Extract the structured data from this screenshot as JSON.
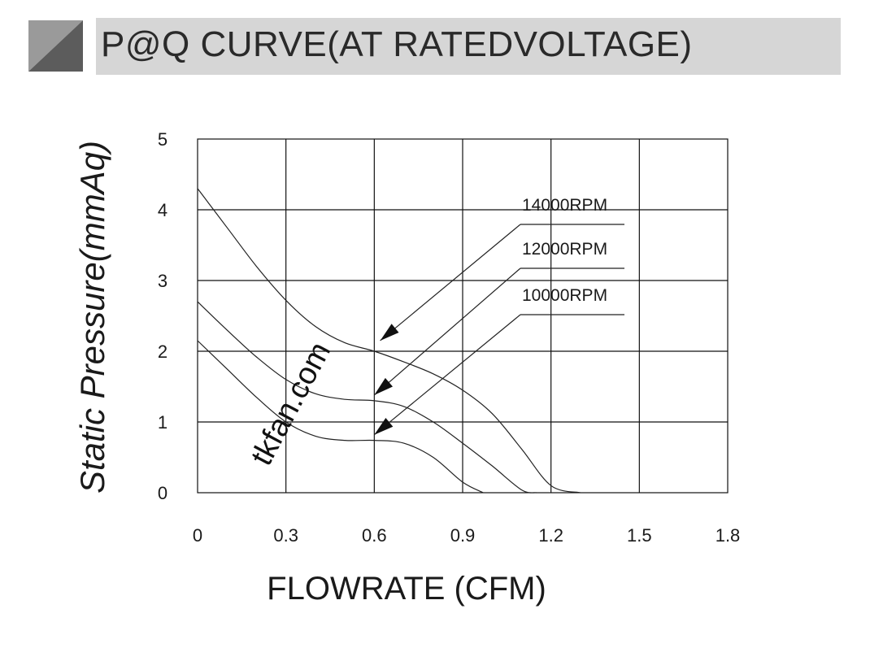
{
  "header": {
    "title": "P@Q CURVE(AT RATEDVOLTAGE)"
  },
  "watermark": "tkfan.com",
  "chart_data": {
    "type": "line",
    "xlabel": "FLOWRATE (CFM)",
    "ylabel": "Static  Pressure(mmAq)",
    "xlim": [
      0,
      1.8
    ],
    "ylim": [
      0,
      5
    ],
    "x_ticks": [
      "0",
      "0.3",
      "0.6",
      "0.9",
      "1.2",
      "1.5",
      "1.8"
    ],
    "y_ticks": [
      "0",
      "1",
      "2",
      "3",
      "4",
      "5"
    ],
    "grid": true,
    "series": [
      {
        "name": "14000RPM",
        "x": [
          0,
          0.1,
          0.2,
          0.3,
          0.4,
          0.5,
          0.6,
          0.7,
          0.8,
          0.9,
          1.0,
          1.1,
          1.2,
          1.3
        ],
        "y": [
          4.3,
          3.75,
          3.2,
          2.72,
          2.35,
          2.12,
          2.0,
          1.85,
          1.68,
          1.45,
          1.12,
          0.62,
          0.1,
          0.0
        ]
      },
      {
        "name": "12000RPM",
        "x": [
          0,
          0.1,
          0.2,
          0.3,
          0.4,
          0.5,
          0.6,
          0.7,
          0.8,
          0.9,
          1.0,
          1.1,
          1.15
        ],
        "y": [
          2.7,
          2.3,
          1.92,
          1.6,
          1.4,
          1.32,
          1.3,
          1.22,
          1.0,
          0.7,
          0.38,
          0.04,
          0.0
        ]
      },
      {
        "name": "10000RPM",
        "x": [
          0,
          0.1,
          0.2,
          0.3,
          0.4,
          0.5,
          0.6,
          0.7,
          0.8,
          0.9,
          0.97
        ],
        "y": [
          2.15,
          1.75,
          1.35,
          1.0,
          0.8,
          0.74,
          0.74,
          0.7,
          0.5,
          0.15,
          0.0
        ]
      }
    ],
    "annotations": [
      {
        "text": "14000RPM",
        "arrow_to": {
          "x": 0.62,
          "y": 2.15
        }
      },
      {
        "text": "12000RPM",
        "arrow_to": {
          "x": 0.6,
          "y": 1.38
        }
      },
      {
        "text": "10000RPM",
        "arrow_to": {
          "x": 0.6,
          "y": 0.82
        }
      }
    ]
  }
}
